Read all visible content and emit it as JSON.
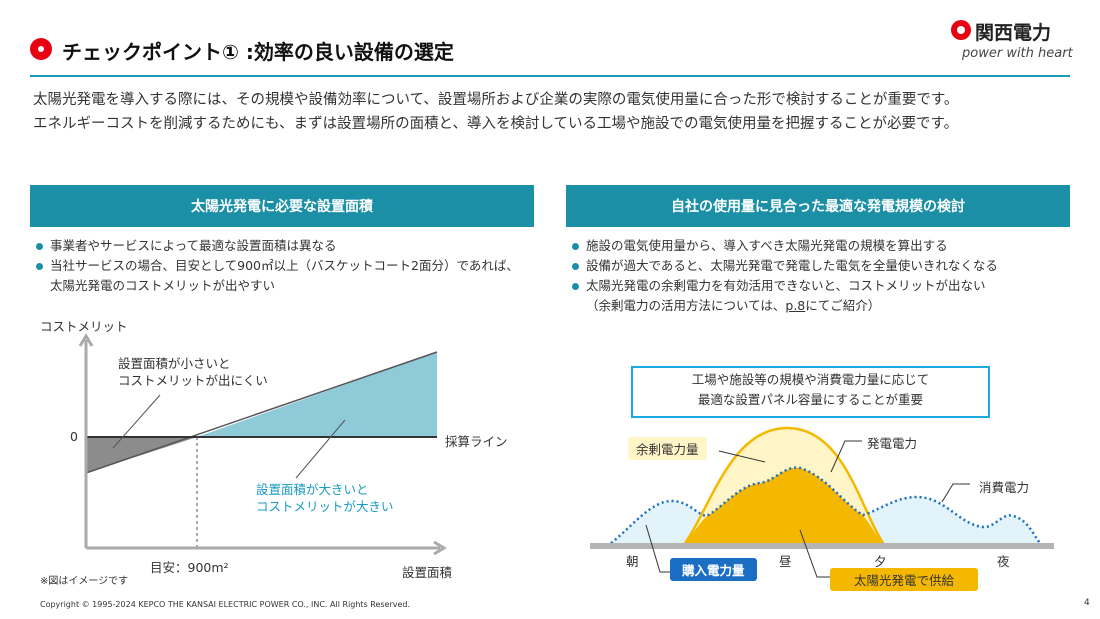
{
  "header": {
    "title": "チェックポイント① :効率の良い設備の選定",
    "logo_name": "関西電力",
    "logo_tagline": "power with heart"
  },
  "intro": [
    "太陽光発電を導入する際には、その規模や設備効率について、設置場所および企業の実際の電気使用量に合った形で検討することが重要です。",
    "エネルギーコストを削減するためにも、まずは設置場所の面積と、導入を検討している工場や施設での電気使用量を把握することが必要です。"
  ],
  "left": {
    "heading": "太陽光発電に必要な設置面積",
    "bullets": [
      "事業者やサービスによって最適な設置面積は異なる",
      "当社サービスの場合、目安として900㎡以上（バスケットコート2面分）であれば、太陽光発電のコストメリットが出やすい"
    ],
    "chart": {
      "ylabel": "コストメリット",
      "xlabel": "設置面積",
      "zero": "0",
      "breakeven": "採算ライン",
      "threshold": "目安：900m²",
      "small_note": "設置面積が小さいと\nコストメリットが出にくい",
      "large_note": "設置面積が大きいと\nコストメリットが大きい",
      "footnote": "※図はイメージです",
      "colors": {
        "loss": "#8c8c8c",
        "gain": "#8ecad8",
        "note_blue": "#1a9bc4"
      }
    }
  },
  "right": {
    "heading": "自社の使用量に見合った最適な発電規模の検討",
    "bullets": [
      "施設の電気使用量から、導入すべき太陽光発電の規模を算出する",
      "設備が過大であると、太陽光発電で発電した電気を全量使いきれなくなる",
      "太陽光発電の余剰電力を有効活用できないと、コストメリットが出ない"
    ],
    "bullet_note_prefix": "（余剰電力の活用方法については、",
    "bullet_note_link": "p.8",
    "bullet_note_suffix": "にてご紹介）",
    "callout": [
      "工場や施設等の規模や消費電力量に応じて",
      "最適な設置パネル容量にすることが重要"
    ],
    "chart": {
      "surplus": "余剰電力量",
      "generation": "発電電力",
      "consumption": "消費電力",
      "purchase": "購入電力量",
      "solar_supply": "太陽光発電で供給",
      "times": [
        "朝",
        "昼",
        "夕",
        "夜"
      ],
      "colors": {
        "generation": "#f5b800",
        "surplus": "#fff5c6",
        "consumption_line": "#1a6fc4",
        "consumption_fill": "#e2f3fa",
        "purchase": "#1a6fc4"
      }
    }
  },
  "footer": {
    "copyright": "Copyright © 1995-2024 KEPCO THE KANSAI ELECTRIC POWER CO., INC. All Rights Reserved.",
    "page": "4"
  }
}
